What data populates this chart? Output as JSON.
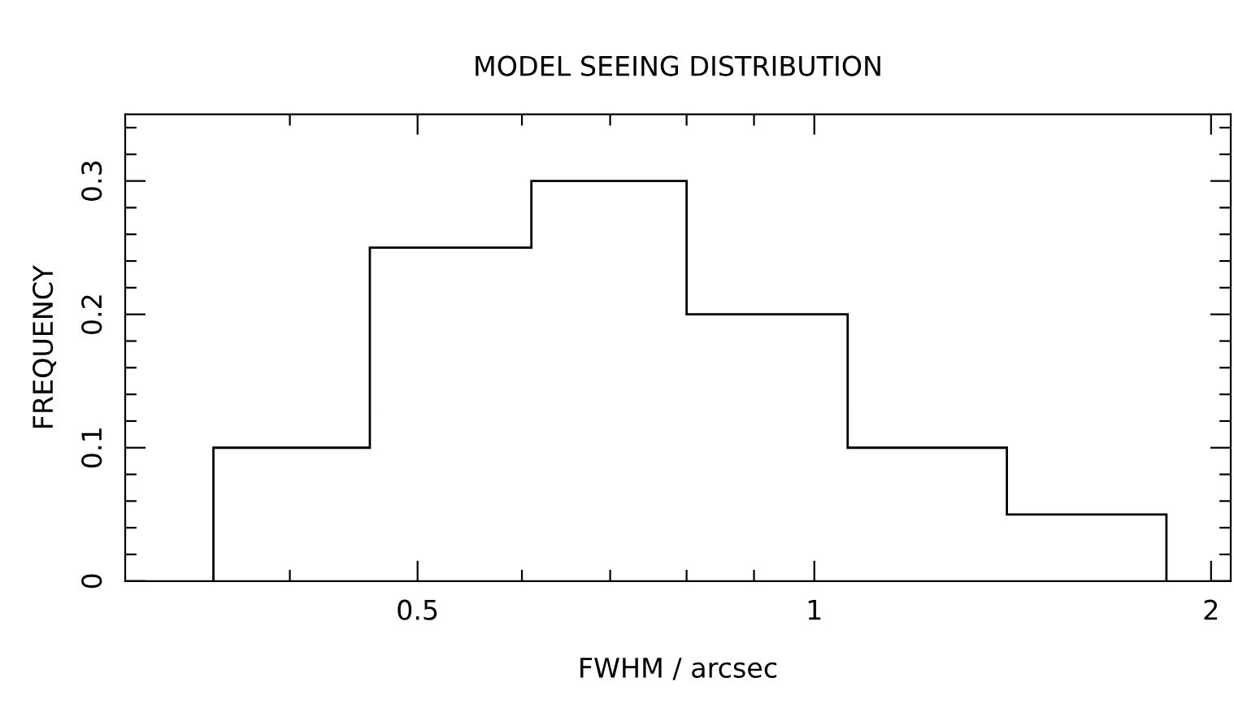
{
  "chart_data": {
    "type": "histogram",
    "title": "MODEL SEEING DISTRIBUTION",
    "xlabel": "FWHM / arcsec",
    "ylabel": "FREQUENCY",
    "bins": [
      0.35,
      0.46,
      0.61,
      0.8,
      1.06,
      1.4,
      1.85
    ],
    "values": [
      0.1,
      0.25,
      0.3,
      0.2,
      0.1,
      0.05
    ],
    "color": "#000000",
    "log": "x",
    "grid": false,
    "xlim": [
      0.3,
      2.07
    ],
    "ylim": [
      0,
      0.35
    ],
    "xticks": [
      {
        "value": 0.4,
        "label": null
      },
      {
        "value": 0.5,
        "label": "0.5"
      },
      {
        "value": 0.6,
        "label": null
      },
      {
        "value": 0.7,
        "label": null
      },
      {
        "value": 0.8,
        "label": null
      },
      {
        "value": 0.9,
        "label": null
      },
      1,
      2
    ],
    "yticks": [
      0,
      {
        "value": 0.02,
        "label": null
      },
      {
        "value": 0.04,
        "label": null
      },
      {
        "value": 0.06,
        "label": null
      },
      {
        "value": 0.08,
        "label": null
      },
      0.1,
      {
        "value": 0.12,
        "label": null
      },
      {
        "value": 0.14,
        "label": null
      },
      {
        "value": 0.16,
        "label": null
      },
      {
        "value": 0.18,
        "label": null
      },
      0.2,
      {
        "value": 0.22,
        "label": null
      },
      {
        "value": 0.24,
        "label": null
      },
      {
        "value": 0.26,
        "label": null
      },
      {
        "value": 0.28,
        "label": null
      },
      0.3,
      {
        "value": 0.32,
        "label": null
      },
      {
        "value": 0.34,
        "label": null
      }
    ]
  }
}
